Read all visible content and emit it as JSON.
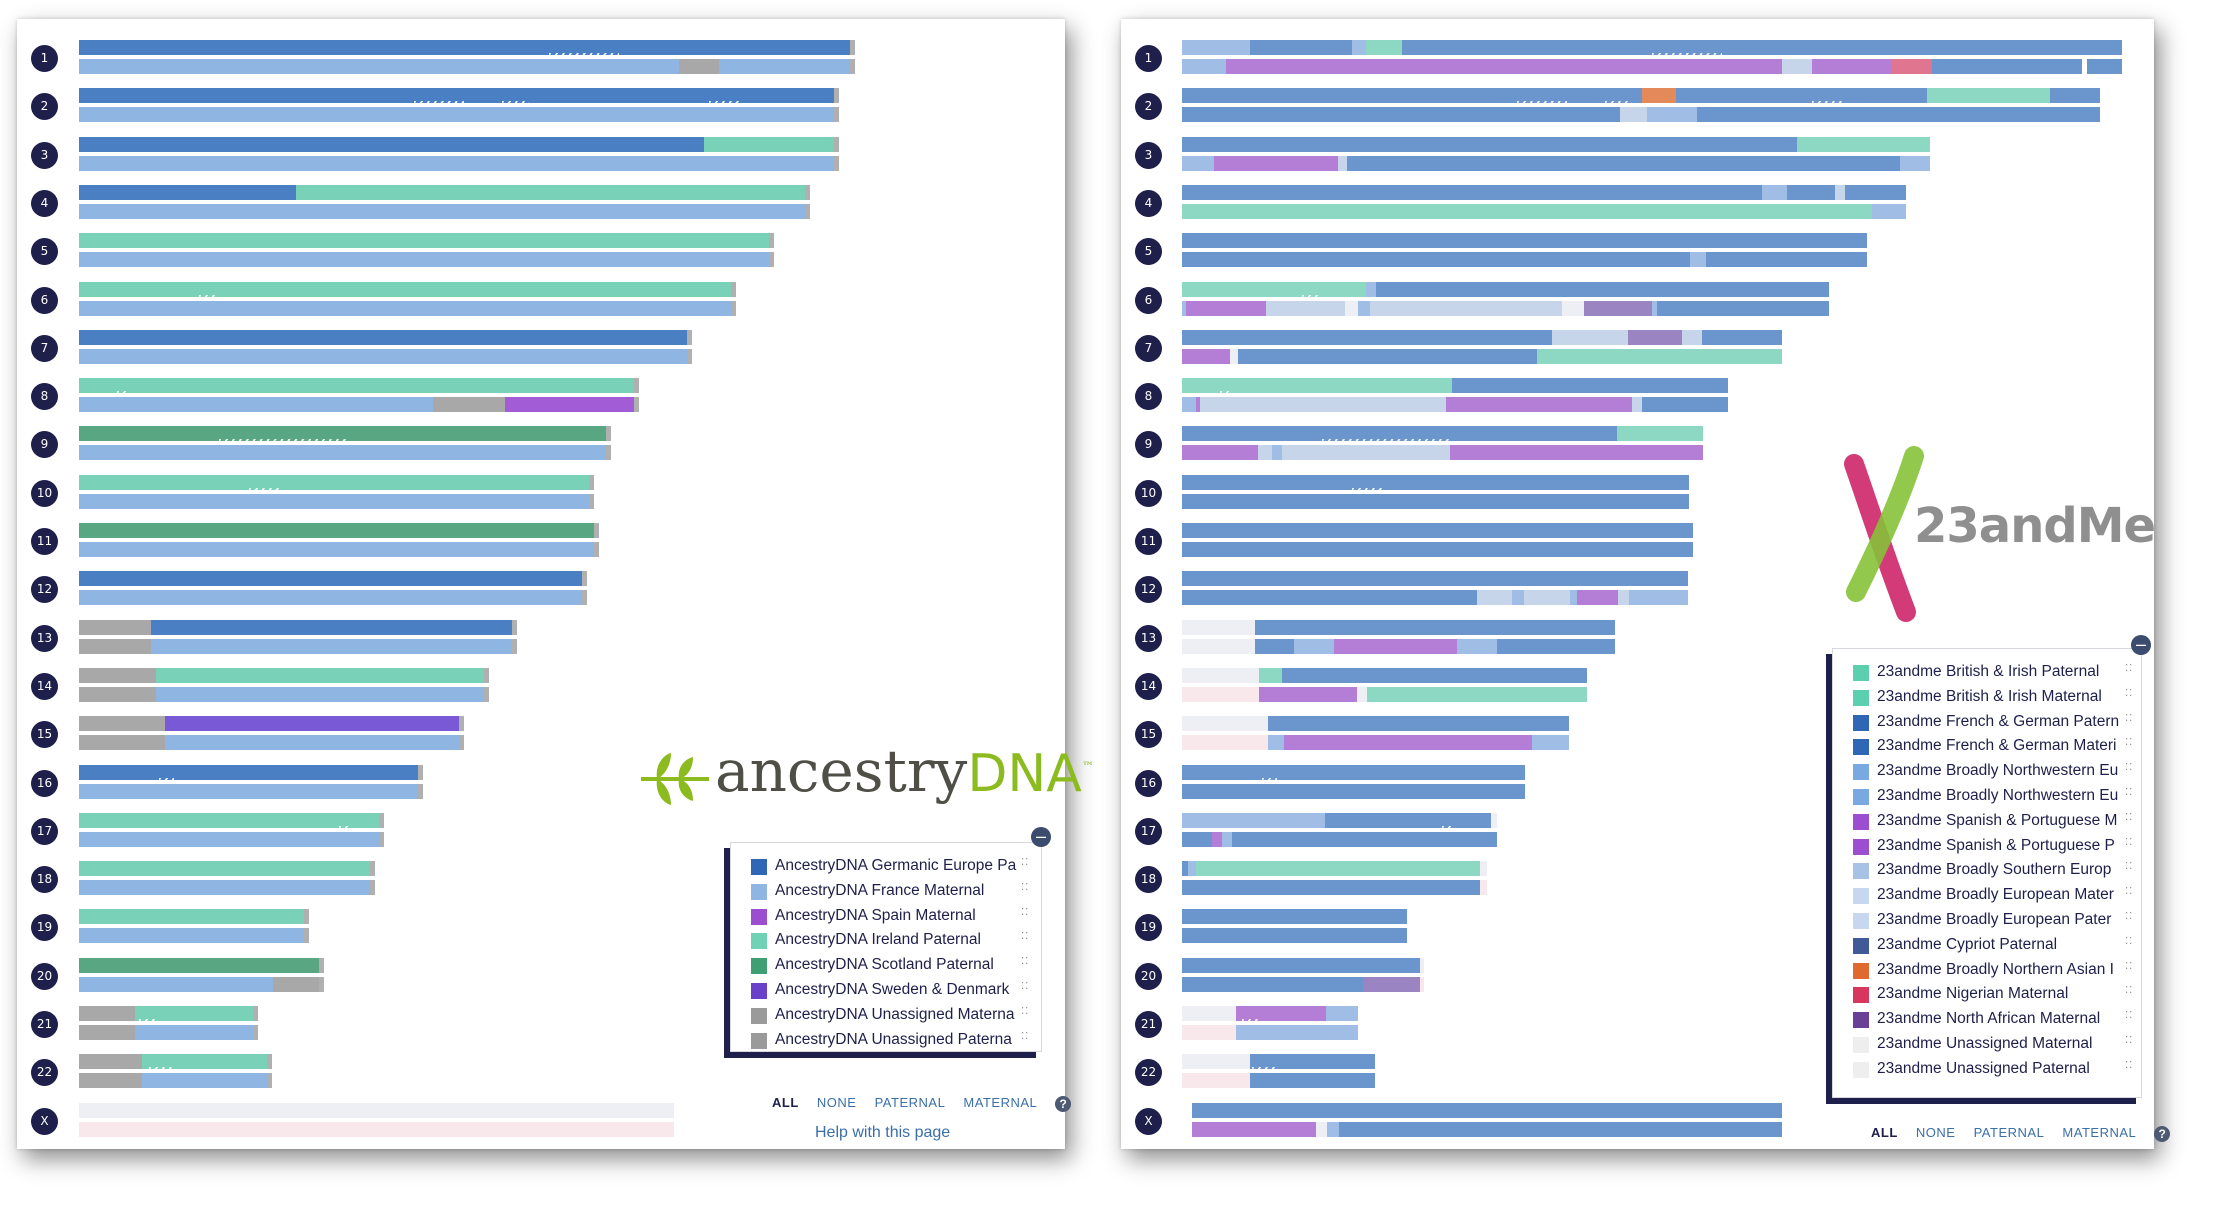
{
  "colors": {
    "dark_navy": "#1e1f4a",
    "anc_germanic": "#4a7fc4",
    "anc_france": "#8fb6e3",
    "anc_spain": "#a25cd6",
    "anc_ireland": "#79d2b8",
    "anc_scotland": "#59a683",
    "anc_sweden": "#7a59d6",
    "anc_unassigned": "#a8a8a8",
    "me_british": "#8cd8c2",
    "me_french": "#6b95cd",
    "me_nw_europe": "#9fbde5",
    "me_spanish": "#b57ed6",
    "me_southern": "#c6d5ea",
    "me_cypriot": "#6a6db2",
    "me_north_african": "#9a84c2",
    "me_northern_asian": "#e3895a",
    "me_nigerian": "#e07590",
    "me_unassigned_maternal": "#eeeff4",
    "me_unassigned_paternal": "#f8e8ec"
  },
  "left_panel": {
    "brand": "ancestry",
    "logo_text_1": "ancestry",
    "logo_text_2": "DNA",
    "logo_tm": "™",
    "legend": [
      {
        "label": "AncestryDNA Germanic Europe Pa",
        "color": "#2f66b6"
      },
      {
        "label": "AncestryDNA France Maternal",
        "color": "#8fb6e3"
      },
      {
        "label": "AncestryDNA Spain Maternal",
        "color": "#9b4fd0"
      },
      {
        "label": "AncestryDNA Ireland Paternal",
        "color": "#6fd2b4"
      },
      {
        "label": "AncestryDNA Scotland Paternal",
        "color": "#3f9f74"
      },
      {
        "label": "AncestryDNA Sweden & Denmark",
        "color": "#6a42c9"
      },
      {
        "label": "AncestryDNA Unassigned Materna",
        "color": "#9a9a9a"
      },
      {
        "label": "AncestryDNA Unassigned Paterna",
        "color": "#9a9a9a"
      }
    ],
    "filters": {
      "all": "ALL",
      "none": "NONE",
      "paternal": "PATERNAL",
      "maternal": "MATERNAL"
    },
    "help_icon": "?",
    "help_link": "Help with this page",
    "collapse_glyph": "–"
  },
  "right_panel": {
    "brand": "23andMe",
    "logo_text": "23andMe",
    "legend": [
      {
        "label": "23andme British & Irish Paternal",
        "color": "#5ccfae"
      },
      {
        "label": "23andme British & Irish Maternal",
        "color": "#5ccfae"
      },
      {
        "label": "23andme French & German Patern",
        "color": "#2f66b6"
      },
      {
        "label": "23andme French & German Materi",
        "color": "#2f66b6"
      },
      {
        "label": "23andme Broadly Northwestern Eu",
        "color": "#7aa8e0"
      },
      {
        "label": "23andme Broadly Northwestern Eu",
        "color": "#7aa8e0"
      },
      {
        "label": "23andme Spanish & Portuguese M",
        "color": "#9b4fd0"
      },
      {
        "label": "23andme Spanish & Portuguese P",
        "color": "#9b4fd0"
      },
      {
        "label": "23andme Broadly Southern Europ",
        "color": "#a6c2e4"
      },
      {
        "label": "23andme Broadly European Mater",
        "color": "#c6d7ef"
      },
      {
        "label": "23andme Broadly European Pater",
        "color": "#c6d7ef"
      },
      {
        "label": "23andme Cypriot Paternal",
        "color": "#3f5a96"
      },
      {
        "label": "23andme Broadly Northern Asian I",
        "color": "#e06a2e"
      },
      {
        "label": "23andme Nigerian Maternal",
        "color": "#d8365c"
      },
      {
        "label": "23andme North African Maternal",
        "color": "#6a3f96"
      },
      {
        "label": "23andme Unassigned Maternal",
        "color": "#eeeeee"
      },
      {
        "label": "23andme Unassigned Paternal",
        "color": "#eeeeee"
      }
    ],
    "filters": {
      "all": "ALL",
      "none": "NONE",
      "paternal": "PATERNAL",
      "maternal": "MATERNAL"
    },
    "help_icon": "?",
    "collapse_glyph": "–"
  },
  "chromosomes": [
    "1",
    "2",
    "3",
    "4",
    "5",
    "6",
    "7",
    "8",
    "9",
    "10",
    "11",
    "12",
    "13",
    "14",
    "15",
    "16",
    "17",
    "18",
    "19",
    "20",
    "21",
    "22",
    "X"
  ]
}
